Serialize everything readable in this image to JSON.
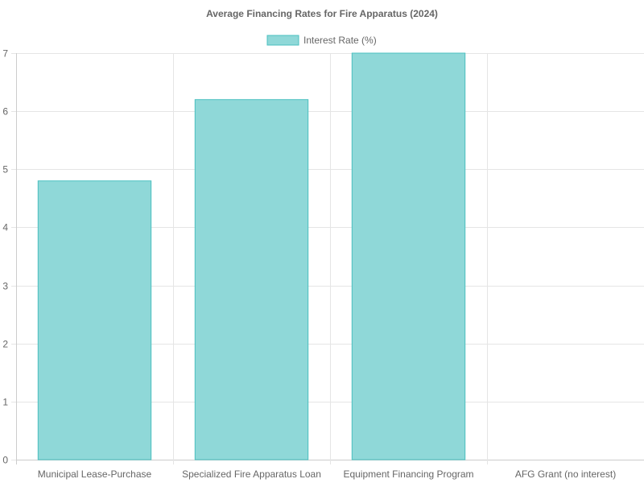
{
  "chart_data": {
    "type": "bar",
    "title": "Average Financing Rates for Fire Apparatus (2024)",
    "categories": [
      "Municipal Lease-Purchase",
      "Specialized Fire Apparatus Loan",
      "Equipment Financing Program",
      "AFG Grant (no interest)"
    ],
    "series": [
      {
        "name": "Interest Rate (%)",
        "values": [
          4.8,
          6.2,
          7.0,
          0
        ]
      }
    ],
    "ylim": [
      0,
      7
    ],
    "yticks": [
      "0",
      "1",
      "2",
      "3",
      "4",
      "5",
      "6",
      "7"
    ],
    "grid": true,
    "legend_position": "top",
    "colors": {
      "bar_fill": "#8fd8d8",
      "bar_stroke": "#4bc0c0",
      "grid": "#e5e5e5",
      "axis": "#cccccc",
      "text": "#666666"
    }
  }
}
